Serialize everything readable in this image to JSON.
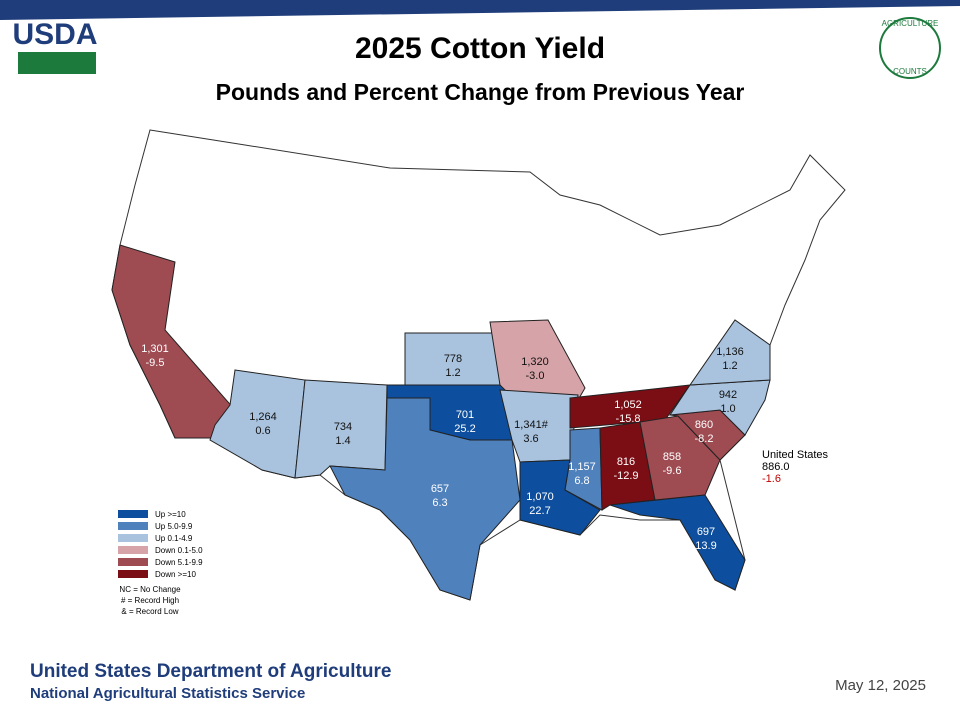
{
  "header": {
    "logo": "USDA",
    "badge_top": "AGRICULTURE",
    "badge_bottom": "COUNTS",
    "title": "2025 Cotton Yield",
    "subtitle": "Pounds and Percent Change from Previous Year"
  },
  "states": [
    {
      "name": "California",
      "yield": "1,301",
      "change": "-9.5",
      "color": "#9e4b52"
    },
    {
      "name": "Arizona",
      "yield": "1,264",
      "change": "0.6",
      "color": "#a9c3df"
    },
    {
      "name": "New Mexico",
      "yield": "734",
      "change": "1.4",
      "color": "#a9c3df"
    },
    {
      "name": "Kansas",
      "yield": "778",
      "change": "1.2",
      "color": "#a9c3df"
    },
    {
      "name": "Missouri",
      "yield": "1,320",
      "change": "-3.0",
      "color": "#d6a4a8"
    },
    {
      "name": "Oklahoma",
      "yield": "701",
      "change": "25.2",
      "color": "#0d4f9e"
    },
    {
      "name": "Texas",
      "yield": "657",
      "change": "6.3",
      "color": "#4f81bd"
    },
    {
      "name": "Arkansas",
      "yield": "1,341#",
      "change": "3.6",
      "color": "#a9c3df"
    },
    {
      "name": "Louisiana",
      "yield": "1,070",
      "change": "22.7",
      "color": "#0d4f9e"
    },
    {
      "name": "Mississippi",
      "yield": "1,157",
      "change": "6.8",
      "color": "#4f81bd"
    },
    {
      "name": "Tennessee",
      "yield": "1,052",
      "change": "-15.8",
      "color": "#7b0d14"
    },
    {
      "name": "Alabama",
      "yield": "816",
      "change": "-12.9",
      "color": "#7b0d14"
    },
    {
      "name": "Georgia",
      "yield": "858",
      "change": "-9.6",
      "color": "#9e4b52"
    },
    {
      "name": "South Carolina",
      "yield": "860",
      "change": "-8.2",
      "color": "#9e4b52"
    },
    {
      "name": "North Carolina",
      "yield": "942",
      "change": "1.0",
      "color": "#a9c3df"
    },
    {
      "name": "Virginia",
      "yield": "1,136",
      "change": "1.2",
      "color": "#a9c3df"
    },
    {
      "name": "Florida",
      "yield": "697",
      "change": "13.9",
      "color": "#0d4f9e"
    }
  ],
  "national": {
    "label": "United States",
    "yield": "886.0",
    "change": "-1.6"
  },
  "legend": [
    {
      "label": "Up >=10",
      "color": "#0d4f9e"
    },
    {
      "label": "Up 5.0-9.9",
      "color": "#4f81bd"
    },
    {
      "label": "Up 0.1-4.9",
      "color": "#a9c3df"
    },
    {
      "label": "Down 0.1-5.0",
      "color": "#d6a4a8"
    },
    {
      "label": "Down 5.1-9.9",
      "color": "#9e4b52"
    },
    {
      "label": "Down >=10",
      "color": "#7b0d14"
    }
  ],
  "notes": [
    "NC = No Change",
    "# = Record High",
    "& = Record Low"
  ],
  "footer": {
    "agency": "United States Department of Agriculture",
    "service": "National Agricultural Statistics Service",
    "date": "May 12, 2025"
  }
}
